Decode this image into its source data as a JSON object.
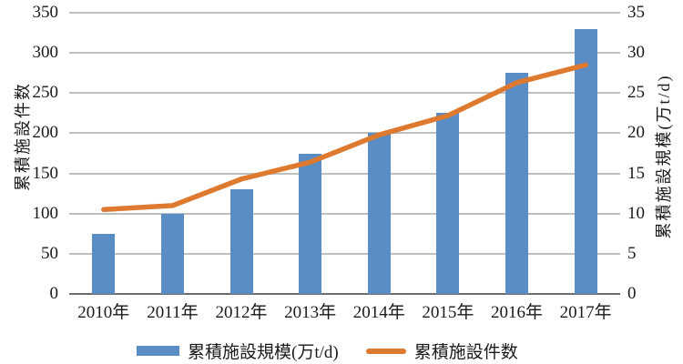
{
  "chart_data": {
    "type": "bar",
    "subtype": "bar+line combo, dual axis",
    "title": "",
    "categories": [
      "2010年",
      "2011年",
      "2012年",
      "2013年",
      "2014年",
      "2015年",
      "2016年",
      "2017年"
    ],
    "series": [
      {
        "name": "累積施設規模(万t/d)",
        "type": "bar",
        "axis": "right",
        "color": "#5A8CC5",
        "values": [
          7.5,
          10,
          13,
          17.5,
          20,
          22.5,
          27.5,
          33
        ]
      },
      {
        "name": "累積施設件数",
        "type": "line",
        "axis": "left",
        "color": "#DD7A30",
        "values": [
          105,
          110,
          143,
          164,
          198,
          222,
          263,
          285
        ]
      }
    ],
    "left_axis": {
      "title": "累積施設件数",
      "min": 0,
      "max": 350,
      "step": 50,
      "ticks": [
        "0",
        "50",
        "100",
        "150",
        "200",
        "250",
        "300",
        "350"
      ]
    },
    "right_axis": {
      "title": "累積施設規模(万t/d)",
      "min": 0,
      "max": 35,
      "step": 5,
      "ticks": [
        "0",
        "5",
        "10",
        "15",
        "20",
        "25",
        "30",
        "35"
      ]
    },
    "grid": true,
    "legend_position": "bottom",
    "gridline_color": "#BFBFBF",
    "axis_line_color": "#6E6E6E",
    "text_color": "#1a1a1a",
    "background_color": "#ffffff"
  }
}
